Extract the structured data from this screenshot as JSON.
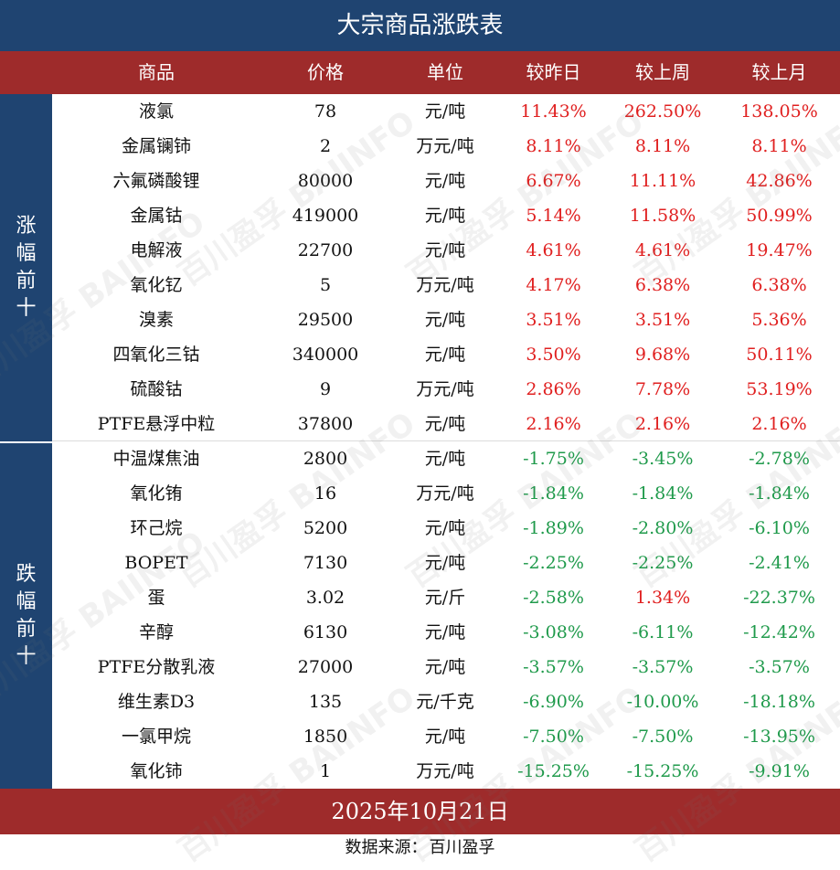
{
  "title": "大宗商品涨跌表",
  "headers": [
    "商品",
    "价格",
    "单位",
    "较昨日",
    "较上周",
    "较上月"
  ],
  "section_rise": "涨幅前十",
  "section_fall": "跌幅前十",
  "colors": {
    "title_bg": "#1f4471",
    "header_bg": "#9e2b2b",
    "up": "#e02020",
    "down": "#1f9a4b"
  },
  "rise_rows": [
    {
      "name": "液氯",
      "price": "78",
      "unit": "元/吨",
      "day": "11.43%",
      "week": "262.50%",
      "month": "138.05%"
    },
    {
      "name": "金属镧铈",
      "price": "2",
      "unit": "万元/吨",
      "day": "8.11%",
      "week": "8.11%",
      "month": "8.11%"
    },
    {
      "name": "六氟磷酸锂",
      "price": "80000",
      "unit": "元/吨",
      "day": "6.67%",
      "week": "11.11%",
      "month": "42.86%"
    },
    {
      "name": "金属钴",
      "price": "419000",
      "unit": "元/吨",
      "day": "5.14%",
      "week": "11.58%",
      "month": "50.99%"
    },
    {
      "name": "电解液",
      "price": "22700",
      "unit": "元/吨",
      "day": "4.61%",
      "week": "4.61%",
      "month": "19.47%"
    },
    {
      "name": "氧化钇",
      "price": "5",
      "unit": "万元/吨",
      "day": "4.17%",
      "week": "6.38%",
      "month": "6.38%"
    },
    {
      "name": "溴素",
      "price": "29500",
      "unit": "元/吨",
      "day": "3.51%",
      "week": "3.51%",
      "month": "5.36%"
    },
    {
      "name": "四氧化三钴",
      "price": "340000",
      "unit": "元/吨",
      "day": "3.50%",
      "week": "9.68%",
      "month": "50.11%"
    },
    {
      "name": "硫酸钴",
      "price": "9",
      "unit": "万元/吨",
      "day": "2.86%",
      "week": "7.78%",
      "month": "53.19%"
    },
    {
      "name": "PTFE悬浮中粒",
      "price": "37800",
      "unit": "元/吨",
      "day": "2.16%",
      "week": "2.16%",
      "month": "2.16%"
    }
  ],
  "fall_rows": [
    {
      "name": "中温煤焦油",
      "price": "2800",
      "unit": "元/吨",
      "day": "-1.75%",
      "week": "-3.45%",
      "month": "-2.78%"
    },
    {
      "name": "氧化铕",
      "price": "16",
      "unit": "万元/吨",
      "day": "-1.84%",
      "week": "-1.84%",
      "month": "-1.84%"
    },
    {
      "name": "环己烷",
      "price": "5200",
      "unit": "元/吨",
      "day": "-1.89%",
      "week": "-2.80%",
      "month": "-6.10%"
    },
    {
      "name": "BOPET",
      "price": "7130",
      "unit": "元/吨",
      "day": "-2.25%",
      "week": "-2.25%",
      "month": "-2.41%"
    },
    {
      "name": "蛋",
      "price": "3.02",
      "unit": "元/斤",
      "day": "-2.58%",
      "week": "1.34%",
      "month": "-22.37%"
    },
    {
      "name": "辛醇",
      "price": "6130",
      "unit": "元/吨",
      "day": "-3.08%",
      "week": "-6.11%",
      "month": "-12.42%"
    },
    {
      "name": "PTFE分散乳液",
      "price": "27000",
      "unit": "元/吨",
      "day": "-3.57%",
      "week": "-3.57%",
      "month": "-3.57%"
    },
    {
      "name": "维生素D3",
      "price": "135",
      "unit": "元/千克",
      "day": "-6.90%",
      "week": "-10.00%",
      "month": "-18.18%"
    },
    {
      "name": "一氯甲烷",
      "price": "1850",
      "unit": "元/吨",
      "day": "-7.50%",
      "week": "-7.50%",
      "month": "-13.95%"
    },
    {
      "name": "氧化铈",
      "price": "1",
      "unit": "万元/吨",
      "day": "-15.25%",
      "week": "-15.25%",
      "month": "-9.91%"
    }
  ],
  "date": "2025年10月21日",
  "source_label": "数据来源：",
  "source_name": "百川盈孚",
  "watermark_text": "百川盈孚 BAIINFO"
}
